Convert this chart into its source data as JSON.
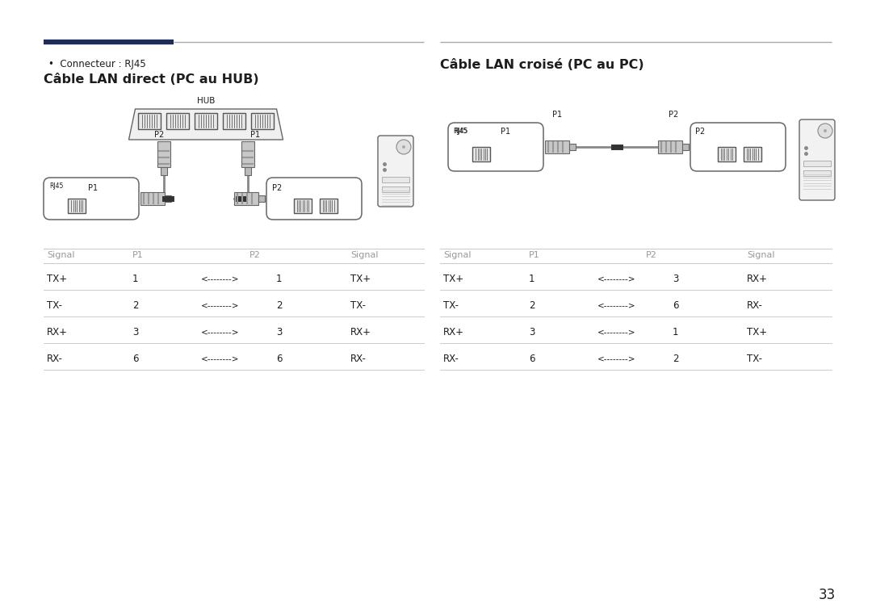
{
  "bg_color": "#ffffff",
  "text_color": "#1d1d1b",
  "gray_color": "#999999",
  "line_gray": "#cccccc",
  "dark_navy": "#1e2d5a",
  "mid_gray": "#aaaaaa",
  "title_left": "Câble LAN direct (PC au HUB)",
  "title_right": "Câble LAN croisé (PC au PC)",
  "bullet_text": "Connecteur : RJ45",
  "table_left_rows": [
    [
      "TX+",
      "1",
      "<-------->",
      "1",
      "TX+"
    ],
    [
      "TX-",
      "2",
      "<-------->",
      "2",
      "TX-"
    ],
    [
      "RX+",
      "3",
      "<-------->",
      "3",
      "RX+"
    ],
    [
      "RX-",
      "6",
      "<-------->",
      "6",
      "RX-"
    ]
  ],
  "table_right_rows": [
    [
      "TX+",
      "1",
      "<-------->",
      "3",
      "RX+"
    ],
    [
      "TX-",
      "2",
      "<-------->",
      "6",
      "RX-"
    ],
    [
      "RX+",
      "3",
      "<-------->",
      "1",
      "TX+"
    ],
    [
      "RX-",
      "6",
      "<-------->",
      "2",
      "TX-"
    ]
  ],
  "page_number": "33"
}
